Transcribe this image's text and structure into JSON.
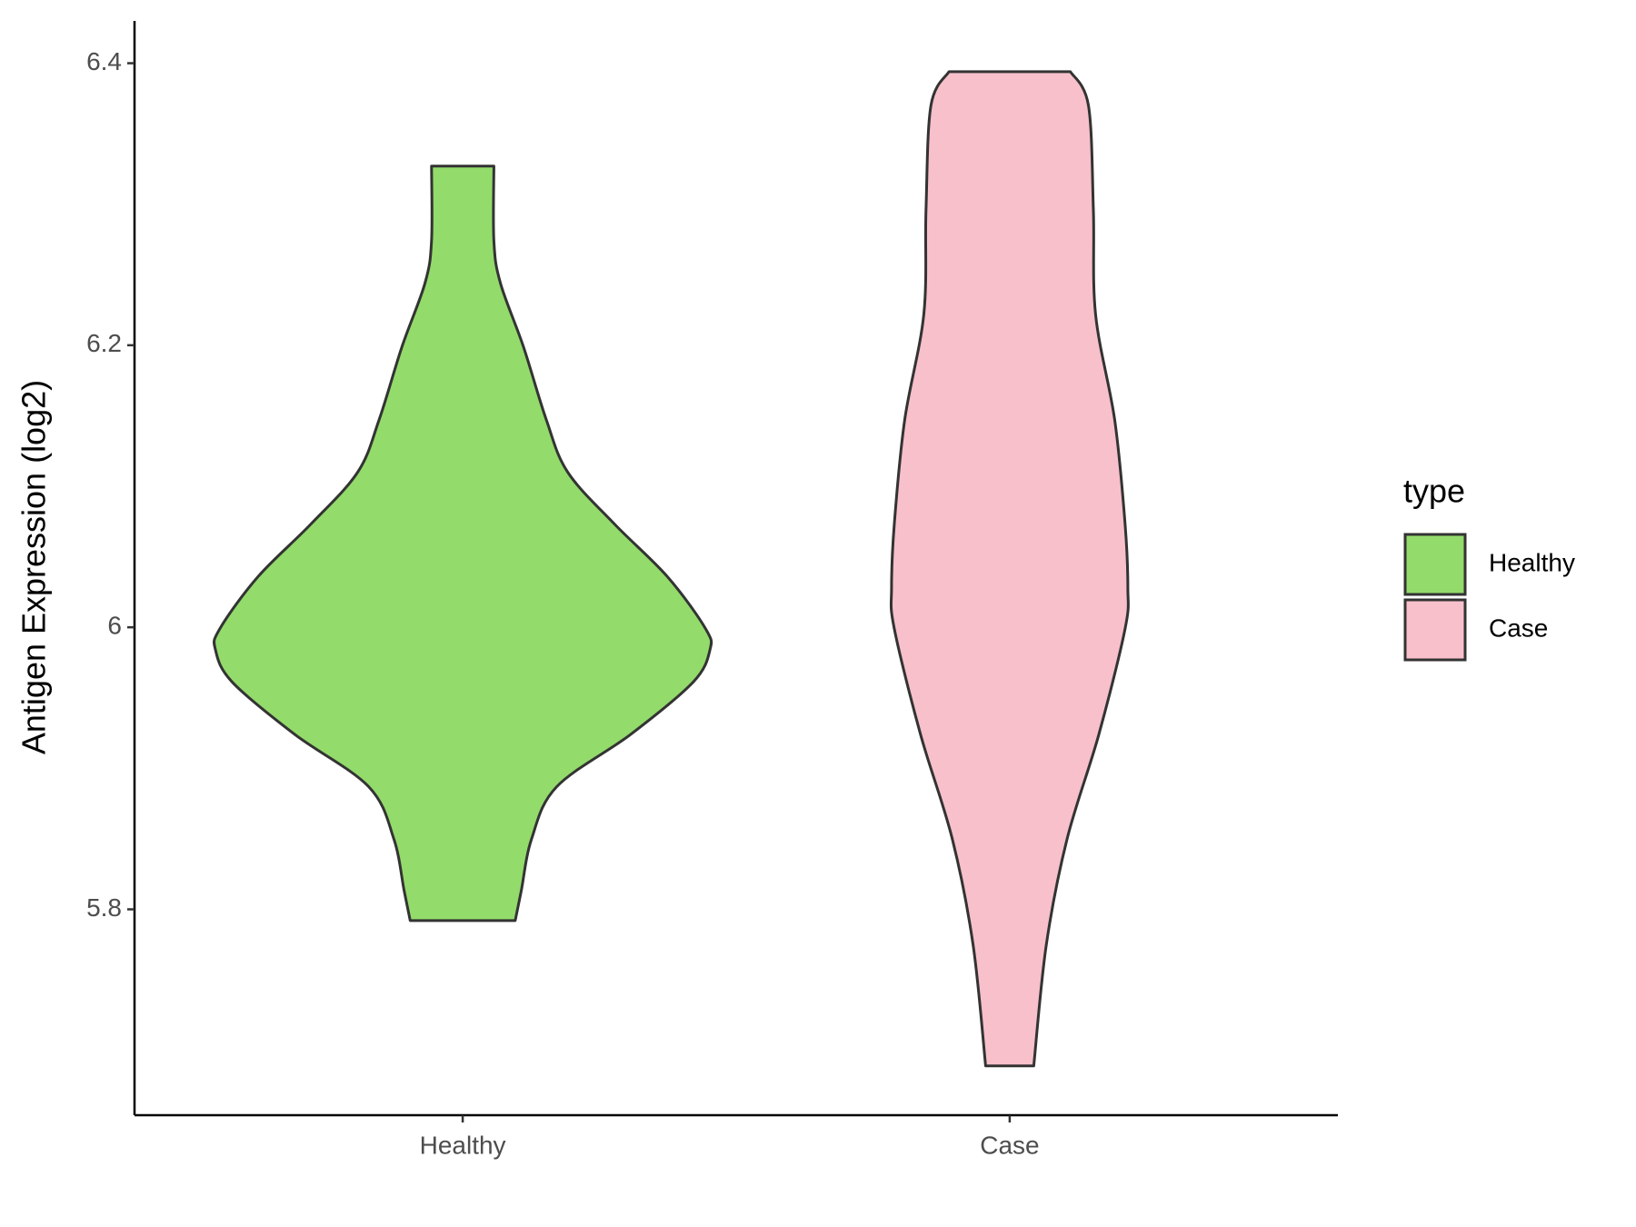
{
  "chart_data": {
    "type": "violin",
    "y_label": "Antigen Expression (log2)",
    "categories": [
      "Healthy",
      "Case"
    ],
    "legend_title": "type",
    "legend_position": "right",
    "ylim": [
      5.654,
      6.43
    ],
    "yticks": [
      5.8,
      6.0,
      6.2,
      6.4
    ],
    "series": [
      {
        "name": "Healthy",
        "color": "#93db6b",
        "y": [
          6.327,
          6.274,
          6.244,
          6.199,
          6.147,
          6.11,
          6.073,
          6.036,
          5.999,
          5.984,
          5.961,
          5.924,
          5.887,
          5.85,
          5.813,
          5.792
        ],
        "width": [
          0.057,
          0.057,
          0.069,
          0.111,
          0.153,
          0.192,
          0.278,
          0.374,
          0.444,
          0.452,
          0.421,
          0.307,
          0.172,
          0.126,
          0.107,
          0.096
        ]
      },
      {
        "name": "Case",
        "color": "#f7c0cb",
        "y": [
          6.394,
          6.37,
          6.296,
          6.222,
          6.147,
          6.073,
          6.028,
          5.999,
          5.924,
          5.85,
          5.775,
          5.689
        ],
        "width": [
          0.111,
          0.144,
          0.153,
          0.157,
          0.192,
          0.211,
          0.216,
          0.211,
          0.163,
          0.105,
          0.067,
          0.044
        ]
      }
    ]
  }
}
